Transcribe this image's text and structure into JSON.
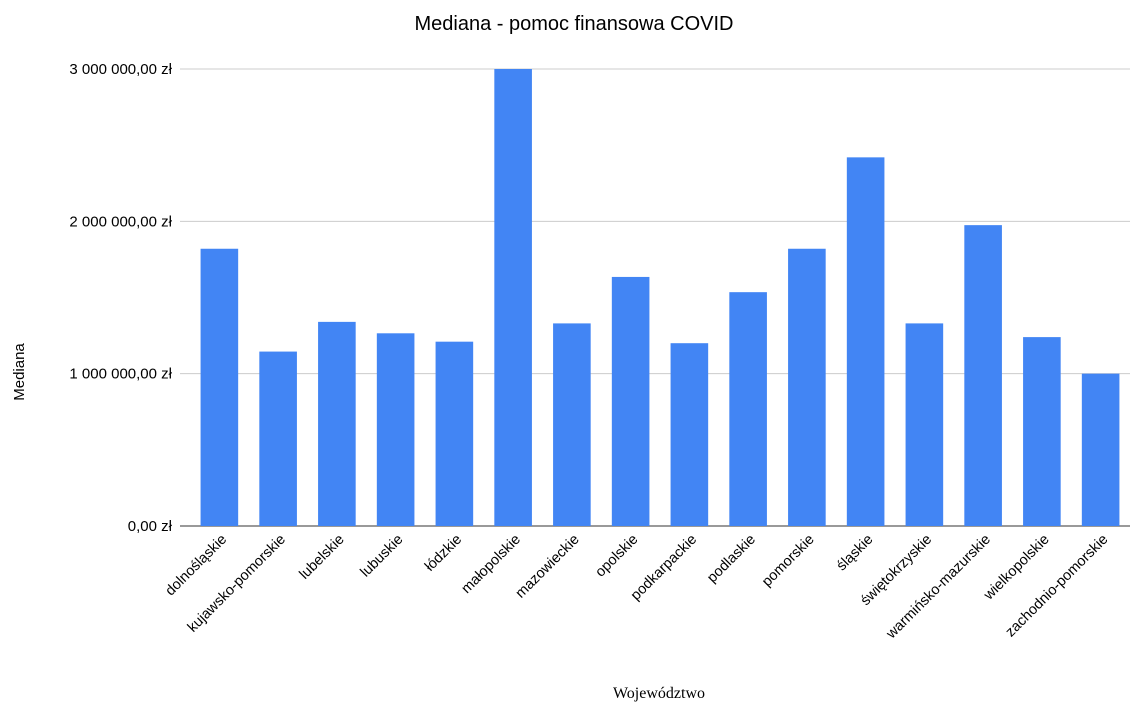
{
  "chart_data": {
    "type": "bar",
    "title": "Mediana - pomoc finansowa COVID",
    "xlabel": "Województwo",
    "ylabel": "Mediana",
    "ylim": [
      0,
      3000000
    ],
    "yticks": [
      0,
      1000000,
      2000000,
      3000000
    ],
    "ytick_labels": [
      "0,00 zł",
      "1 000 000,00 zł",
      "2 000 000,00 zł",
      "3 000 000,00 zł"
    ],
    "grid": true,
    "bar_color": "#4285f4",
    "categories": [
      "dolnośląskie",
      "kujawsko-pomorskie",
      "lubelskie",
      "lubuskie",
      "łódzkie",
      "małopolskie",
      "mazowieckie",
      "opolskie",
      "podkarpackie",
      "podlaskie",
      "pomorskie",
      "śląskie",
      "świętokrzyskie",
      "warmińsko-mazurskie",
      "wielkopolskie",
      "zachodnio-pomorskie"
    ],
    "values": [
      1820000,
      1145000,
      1340000,
      1265000,
      1210000,
      3000000,
      1330000,
      1635000,
      1200000,
      1535000,
      1820000,
      2420000,
      1330000,
      1975000,
      1240000,
      1000000
    ]
  }
}
